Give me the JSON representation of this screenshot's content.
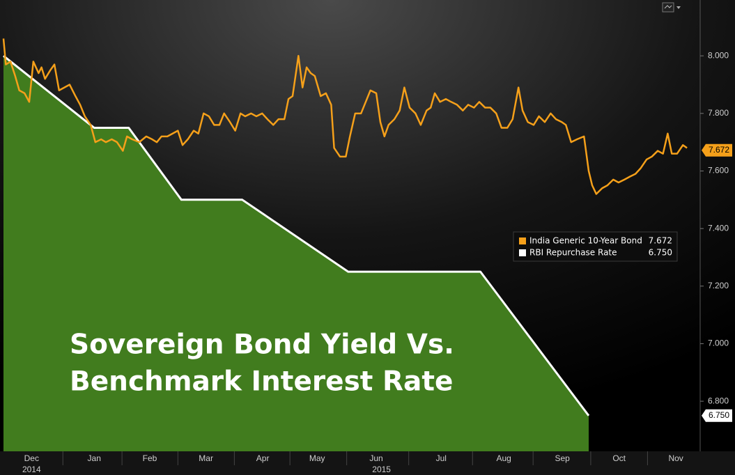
{
  "chart_data": {
    "type": "line",
    "title_lines": [
      "Sovereign Bond Yield Vs.",
      "Benchmark Interest Rate"
    ],
    "xlim": [
      0,
      11.905
    ],
    "ylim": [
      6.626,
      8.194
    ],
    "xticks": [
      {
        "value": 0.48,
        "label": "Dec"
      },
      {
        "value": 1.55,
        "label": "Jan"
      },
      {
        "value": 2.5,
        "label": "Feb"
      },
      {
        "value": 3.46,
        "label": "Mar"
      },
      {
        "value": 4.43,
        "label": "Apr"
      },
      {
        "value": 5.36,
        "label": "May"
      },
      {
        "value": 6.37,
        "label": "Jun"
      },
      {
        "value": 7.48,
        "label": "Jul"
      },
      {
        "value": 8.55,
        "label": "Aug"
      },
      {
        "value": 9.55,
        "label": "Sep"
      },
      {
        "value": 10.52,
        "label": "Oct"
      },
      {
        "value": 11.49,
        "label": "Nov"
      }
    ],
    "year_labels": [
      {
        "value": 0.48,
        "label": "2014"
      },
      {
        "value": 6.46,
        "label": "2015"
      }
    ],
    "yticks": [
      {
        "value": 6.8,
        "label": "6.800"
      },
      {
        "value": 7.0,
        "label": "7.000"
      },
      {
        "value": 7.2,
        "label": "7.200"
      },
      {
        "value": 7.4,
        "label": "7.400"
      },
      {
        "value": 7.6,
        "label": "7.600"
      },
      {
        "value": 7.8,
        "label": "7.800"
      },
      {
        "value": 8.0,
        "label": "8.000"
      }
    ],
    "series": [
      {
        "name": "India Generic 10-Year Bond",
        "color": "#f5a01a",
        "last_value": 7.672,
        "x": [
          0,
          0.04,
          0.12,
          0.2,
          0.27,
          0.36,
          0.44,
          0.51,
          0.6,
          0.65,
          0.71,
          0.8,
          0.87,
          0.95,
          1.04,
          1.13,
          1.23,
          1.31,
          1.39,
          1.49,
          1.57,
          1.67,
          1.75,
          1.85,
          1.94,
          2.04,
          2.11,
          2.2,
          2.32,
          2.44,
          2.54,
          2.62,
          2.7,
          2.8,
          2.89,
          2.98,
          3.06,
          3.15,
          3.25,
          3.33,
          3.42,
          3.51,
          3.6,
          3.69,
          3.77,
          3.87,
          3.96,
          4.05,
          4.13,
          4.23,
          4.32,
          4.42,
          4.51,
          4.61,
          4.7,
          4.8,
          4.87,
          4.94,
          5.04,
          5.11,
          5.18,
          5.25,
          5.32,
          5.42,
          5.51,
          5.6,
          5.65,
          5.75,
          5.85,
          5.92,
          6.01,
          6.11,
          6.19,
          6.27,
          6.37,
          6.44,
          6.51,
          6.58,
          6.68,
          6.77,
          6.85,
          6.94,
          7.04,
          7.13,
          7.23,
          7.3,
          7.37,
          7.46,
          7.56,
          7.65,
          7.75,
          7.85,
          7.94,
          8.04,
          8.13,
          8.23,
          8.32,
          8.42,
          8.51,
          8.61,
          8.7,
          8.8,
          8.87,
          8.96,
          9.06,
          9.15,
          9.25,
          9.35,
          9.44,
          9.54,
          9.61,
          9.7,
          9.8,
          9.92,
          10,
          10.06,
          10.13,
          10.23,
          10.32,
          10.42,
          10.51,
          10.61,
          10.7,
          10.8,
          10.89,
          10.99,
          11.08,
          11.18,
          11.27,
          11.35,
          11.42,
          11.51,
          11.61,
          11.68
        ],
        "values": [
          8.06,
          7.97,
          7.98,
          7.93,
          7.88,
          7.87,
          7.84,
          7.98,
          7.94,
          7.96,
          7.92,
          7.95,
          7.97,
          7.88,
          7.89,
          7.9,
          7.86,
          7.83,
          7.79,
          7.76,
          7.7,
          7.71,
          7.7,
          7.71,
          7.7,
          7.67,
          7.72,
          7.71,
          7.7,
          7.72,
          7.71,
          7.7,
          7.72,
          7.72,
          7.73,
          7.74,
          7.69,
          7.71,
          7.74,
          7.73,
          7.8,
          7.79,
          7.76,
          7.76,
          7.8,
          7.77,
          7.74,
          7.8,
          7.79,
          7.8,
          7.79,
          7.8,
          7.78,
          7.76,
          7.78,
          7.78,
          7.85,
          7.86,
          8.0,
          7.89,
          7.96,
          7.94,
          7.93,
          7.86,
          7.87,
          7.83,
          7.68,
          7.65,
          7.65,
          7.72,
          7.8,
          7.8,
          7.84,
          7.88,
          7.87,
          7.77,
          7.72,
          7.76,
          7.78,
          7.81,
          7.89,
          7.82,
          7.8,
          7.76,
          7.81,
          7.82,
          7.87,
          7.84,
          7.85,
          7.84,
          7.83,
          7.81,
          7.83,
          7.82,
          7.84,
          7.82,
          7.82,
          7.8,
          7.75,
          7.75,
          7.78,
          7.89,
          7.81,
          7.77,
          7.76,
          7.79,
          7.77,
          7.8,
          7.78,
          7.77,
          7.76,
          7.7,
          7.71,
          7.72,
          7.6,
          7.55,
          7.52,
          7.54,
          7.55,
          7.57,
          7.56,
          7.57,
          7.58,
          7.59,
          7.61,
          7.64,
          7.65,
          7.67,
          7.66,
          7.73,
          7.66,
          7.66,
          7.69,
          7.68
        ]
      },
      {
        "name": "RBI Repurchase Rate",
        "color": "#ffffff",
        "fill": "#417c1e",
        "last_value": {
          "value": 6.75,
          "label": "6.750"
        },
        "x": [
          0,
          1.55,
          2.14,
          3.04,
          4.08,
          5.89,
          8.15,
          10.0
        ],
        "values": [
          8.0,
          7.75,
          7.75,
          7.5,
          7.5,
          7.25,
          7.25,
          6.75
        ]
      }
    ]
  }
}
